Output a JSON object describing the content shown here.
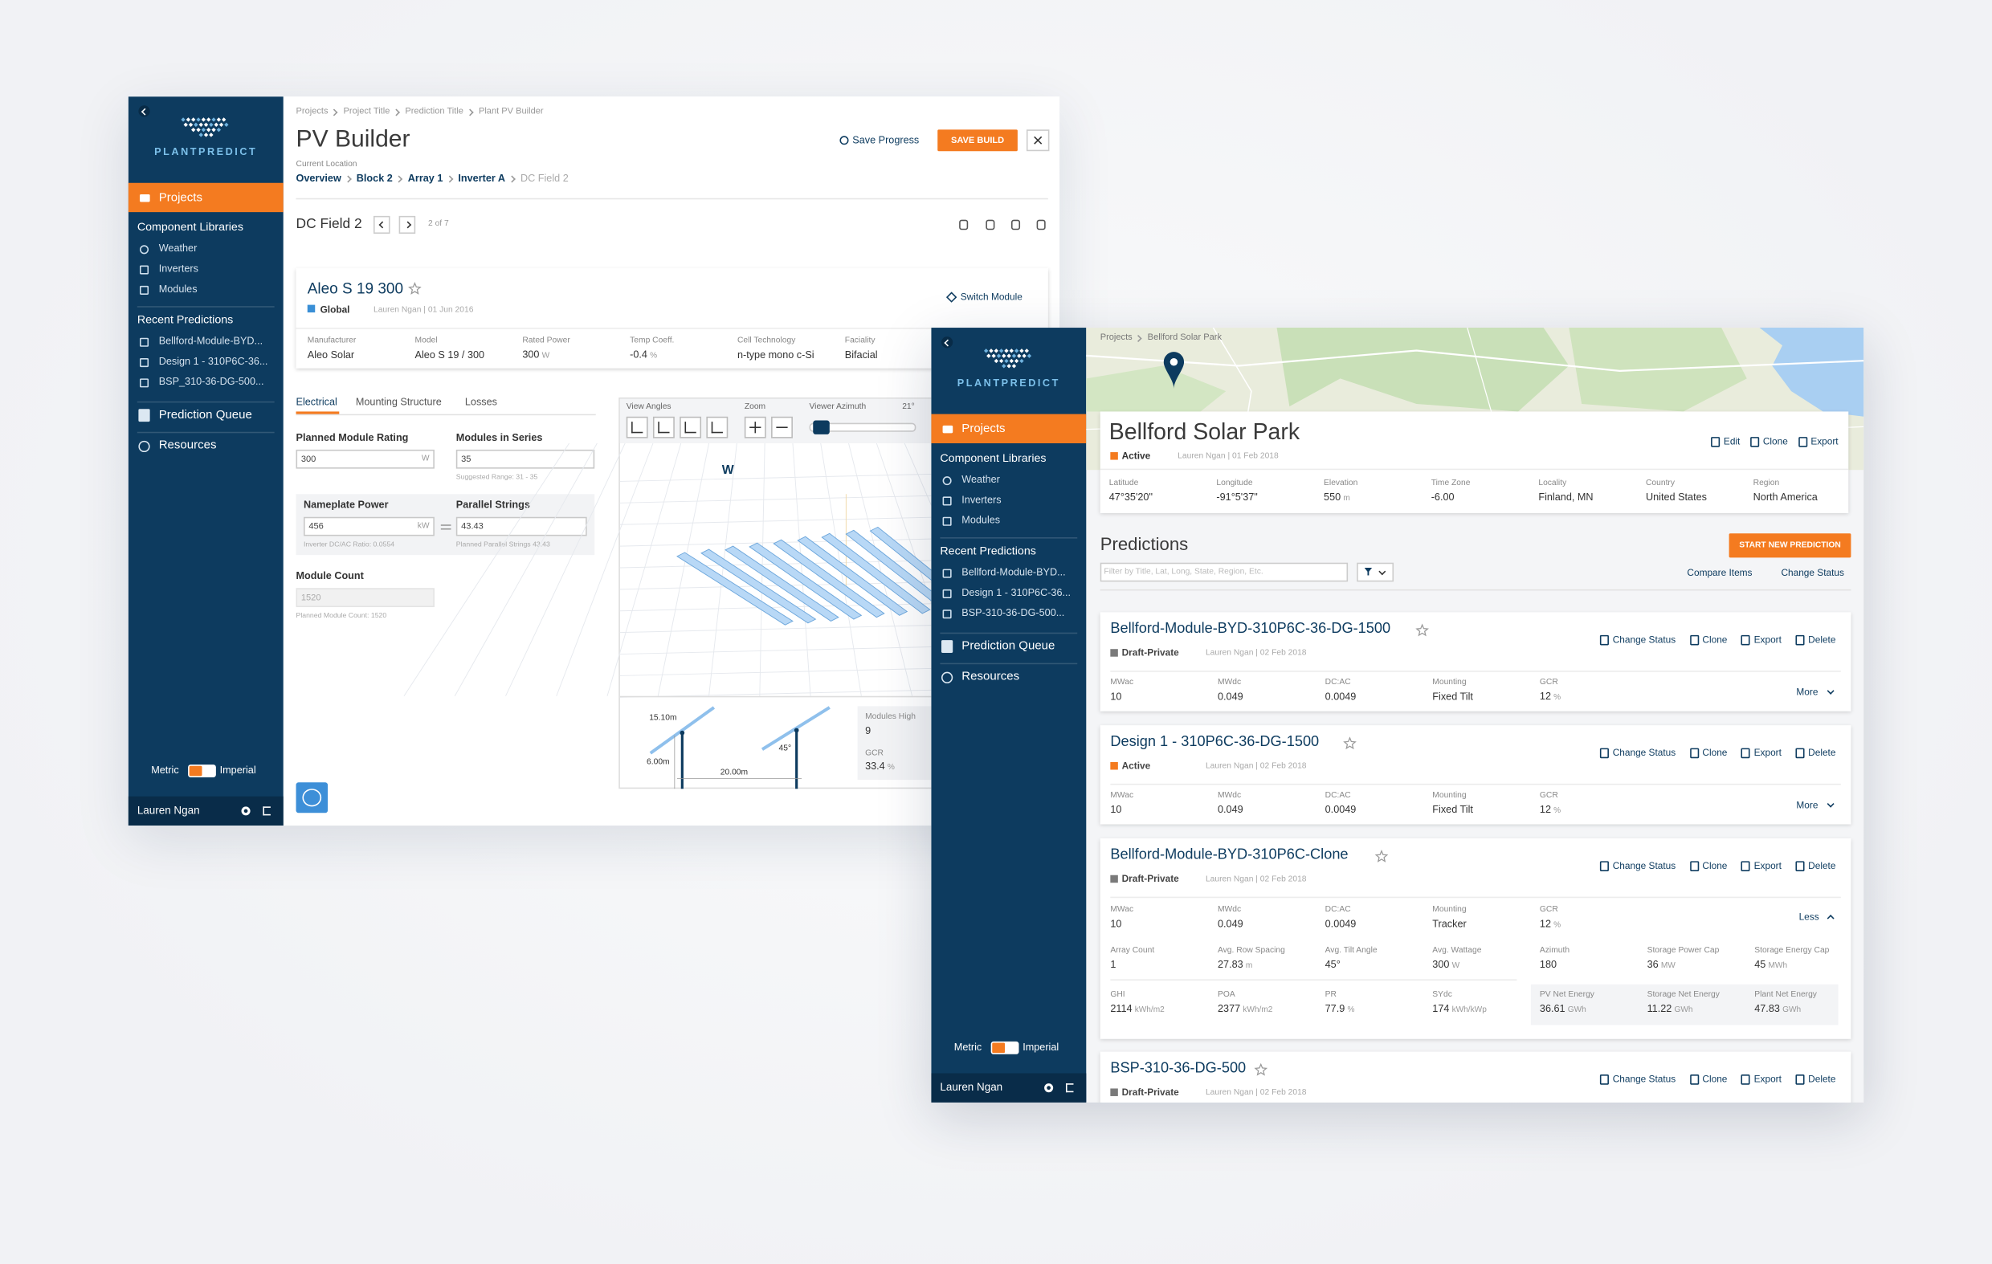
{
  "sidebar": {
    "brand": "PLANTPREDICT",
    "projects": "Projects",
    "component_libraries": "Component Libraries",
    "libraries": [
      "Weather",
      "Inverters",
      "Modules"
    ],
    "recent_predictions": "Recent Predictions",
    "recent_left": [
      "Bellford-Module-BYD...",
      "Design 1 - 310P6C-36...",
      "BSP_310-36-DG-500..."
    ],
    "recent_right": [
      "Bellford-Module-BYD...",
      "Design 1 - 310P6C-36...",
      "BSP-310-36-DG-500..."
    ],
    "prediction_queue": "Prediction Queue",
    "resources": "Resources",
    "metric": "Metric",
    "imperial": "Imperial",
    "user": "Lauren Ngan"
  },
  "pv_builder": {
    "breadcrumbs": [
      "Projects",
      "Project Title",
      "Prediction Title",
      "Plant PV Builder"
    ],
    "title": "PV Builder",
    "save_progress": "Save Progress",
    "save_build": "SAVE BUILD",
    "current_location_label": "Current Location",
    "location": [
      "Overview",
      "Block 2",
      "Array 1",
      "Inverter A",
      "DC Field 2"
    ],
    "dc_field": "DC Field 2",
    "pager": "2 of 7",
    "module": {
      "name": "Aleo S 19 300",
      "tag": "Global",
      "meta": "Lauren Ngan | 01 Jun 2016",
      "switch": "Switch Module",
      "specs": [
        {
          "label": "Manufacturer",
          "value": "Aleo Solar"
        },
        {
          "label": "Model",
          "value": "Aleo S 19 / 300"
        },
        {
          "label": "Rated Power",
          "value": "300",
          "unit": "W"
        },
        {
          "label": "Temp Coeff.",
          "value": "-0.4",
          "unit": "%"
        },
        {
          "label": "Cell Technology",
          "value": "n-type mono c-Si"
        },
        {
          "label": "Faciality",
          "value": "Bifacial"
        }
      ]
    },
    "tabs": [
      "Electrical",
      "Mounting Structure",
      "Losses"
    ],
    "fields": {
      "planned_rating": {
        "label": "Planned Module Rating",
        "value": "300",
        "unit": "W"
      },
      "modules_in_series": {
        "label": "Modules in Series",
        "value": "35",
        "hint": "Suggested Range: 31 - 35"
      },
      "nameplate_power": {
        "label": "Nameplate Power",
        "value": "456",
        "unit": "kW",
        "hint": "Inverter DC/AC Ratio: 0.0554"
      },
      "parallel_strings": {
        "label": "Parallel Strings",
        "value": "43.43",
        "hint": "Planned Parallel Strings 43.43"
      },
      "module_count": {
        "label": "Module Count",
        "value": "1520",
        "hint": "Planned Module Count: 1520"
      }
    },
    "viewer": {
      "view_angles": "View Angles",
      "zoom": "Zoom",
      "azimuth_label": "Viewer Azimuth",
      "azimuth": "21°",
      "compass": "W"
    },
    "diagram": {
      "height": "15.10m",
      "post": "6.00m",
      "spacing": "20.00m",
      "tilt": "45°",
      "modules_high_label": "Modules High",
      "modules_high": "9",
      "gcr_label": "GCR",
      "gcr": {
        "value": "33.4",
        "unit": "%"
      }
    }
  },
  "project": {
    "breadcrumbs": [
      "Projects",
      "Bellford Solar Park"
    ],
    "title": "Bellford Solar Park",
    "status": "Active",
    "status_color": "#f47b20",
    "meta": "Lauren Ngan | 01 Feb 2018",
    "actions": [
      "Edit",
      "Clone",
      "Export"
    ],
    "info": [
      {
        "label": "Latitude",
        "value": "47°35'20\""
      },
      {
        "label": "Longitude",
        "value": "-91°5'37\""
      },
      {
        "label": "Elevation",
        "value": "550",
        "unit": "m"
      },
      {
        "label": "Time Zone",
        "value": "-6.00"
      },
      {
        "label": "Locality",
        "value": "Finland, MN"
      },
      {
        "label": "Country",
        "value": "United States"
      },
      {
        "label": "Region",
        "value": "North America"
      }
    ],
    "predictions_heading": "Predictions",
    "start_new": "START NEW PREDICTION",
    "filter_placeholder": "Filter by Title, Lat, Long, State, Region, Etc.",
    "compare_items": "Compare Items",
    "change_status": "Change Status",
    "card_actions": [
      "Change Status",
      "Clone",
      "Export",
      "Delete"
    ],
    "predictions": [
      {
        "name": "Bellford-Module-BYD-310P6C-36-DG-1500",
        "status": "Draft-Private",
        "color": "#7a7a7a",
        "meta": "Lauren Ngan | 02 Feb 2018",
        "metrics": [
          {
            "label": "MWac",
            "value": "10"
          },
          {
            "label": "MWdc",
            "value": "0.049"
          },
          {
            "label": "DC:AC",
            "value": "0.0049"
          },
          {
            "label": "Mounting",
            "value": "Fixed Tilt"
          },
          {
            "label": "GCR",
            "value": "12",
            "unit": "%"
          }
        ],
        "toggle": "More"
      },
      {
        "name": "Design 1 - 310P6C-36-DG-1500",
        "status": "Active",
        "color": "#f47b20",
        "meta": "Lauren Ngan | 02 Feb 2018",
        "metrics": [
          {
            "label": "MWac",
            "value": "10"
          },
          {
            "label": "MWdc",
            "value": "0.049"
          },
          {
            "label": "DC:AC",
            "value": "0.0049"
          },
          {
            "label": "Mounting",
            "value": "Fixed Tilt"
          },
          {
            "label": "GCR",
            "value": "12",
            "unit": "%"
          }
        ],
        "toggle": "More"
      },
      {
        "name": "Bellford-Module-BYD-310P6C-Clone",
        "status": "Draft-Private",
        "color": "#7a7a7a",
        "meta": "Lauren Ngan | 02 Feb 2018",
        "metrics": [
          {
            "label": "MWac",
            "value": "10"
          },
          {
            "label": "MWdc",
            "value": "0.049"
          },
          {
            "label": "DC:AC",
            "value": "0.0049"
          },
          {
            "label": "Mounting",
            "value": "Tracker"
          },
          {
            "label": "GCR",
            "value": "12",
            "unit": "%"
          }
        ],
        "toggle": "Less",
        "details": [
          {
            "label": "Array Count",
            "value": "1"
          },
          {
            "label": "Avg. Row Spacing",
            "value": "27.83",
            "unit": "m"
          },
          {
            "label": "Avg. Tilt Angle",
            "value": "45°"
          },
          {
            "label": "Avg. Wattage",
            "value": "300",
            "unit": "W"
          },
          {
            "label": "Azimuth",
            "value": "180"
          },
          {
            "label": "Storage Power Cap",
            "value": "36",
            "unit": "MW"
          },
          {
            "label": "Storage Energy Cap",
            "value": "45",
            "unit": "MWh"
          },
          {
            "label": "GHI",
            "value": "2114",
            "unit": "kWh/m2"
          },
          {
            "label": "POA",
            "value": "2377",
            "unit": "kWh/m2"
          },
          {
            "label": "PR",
            "value": "77.9",
            "unit": "%"
          },
          {
            "label": "SYdc",
            "value": "174",
            "unit": "kWh/kWp"
          },
          {
            "label": "PV Net Energy",
            "value": "36.61",
            "unit": "GWh"
          },
          {
            "label": "Storage Net Energy",
            "value": "11.22",
            "unit": "GWh"
          },
          {
            "label": "Plant Net Energy",
            "value": "47.83",
            "unit": "GWh"
          }
        ]
      },
      {
        "name": "BSP-310-36-DG-500",
        "status": "Draft-Private",
        "color": "#7a7a7a",
        "meta": "Lauren Ngan | 02 Feb 2018"
      }
    ]
  }
}
